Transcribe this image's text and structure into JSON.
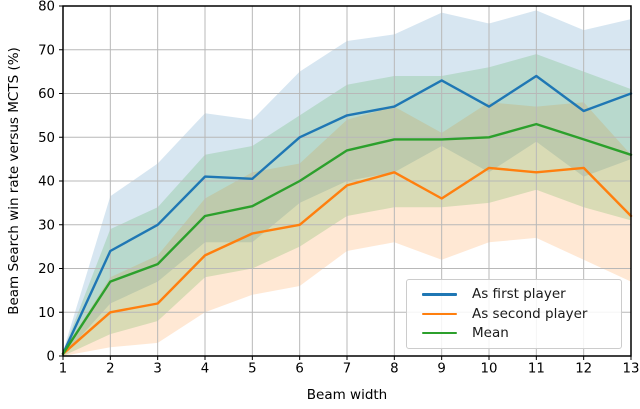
{
  "chart_data": {
    "type": "line",
    "title": "",
    "xlabel": "Beam width",
    "ylabel": "Beam Search win rate versus MCTS (%)",
    "x": [
      1,
      2,
      3,
      4,
      5,
      6,
      7,
      8,
      9,
      10,
      11,
      12,
      13
    ],
    "xlim": [
      1,
      13
    ],
    "ylim": [
      0,
      80
    ],
    "xticks": [
      1,
      2,
      3,
      4,
      5,
      6,
      7,
      8,
      9,
      10,
      11,
      12,
      13
    ],
    "yticks": [
      0,
      10,
      20,
      30,
      40,
      50,
      60,
      70,
      80
    ],
    "grid": true,
    "grid_color": "#b8b8b8",
    "band_opacity": 0.18,
    "legend_position": "lower right",
    "series": [
      {
        "name": "As first player",
        "color": "#1f77b4",
        "values": [
          0.5,
          24,
          30,
          41,
          40.5,
          50,
          55,
          57,
          63,
          57,
          64,
          56,
          60
        ],
        "band_low": [
          0,
          12,
          17,
          26,
          26,
          35,
          40,
          42,
          48,
          42,
          49,
          41,
          45
        ],
        "band_high": [
          1,
          36.5,
          44,
          55.5,
          54,
          65,
          72,
          73.5,
          78.5,
          76,
          79,
          74.5,
          77
        ]
      },
      {
        "name": "As second player",
        "color": "#ff7f0e",
        "values": [
          0.5,
          10,
          12,
          23,
          28,
          30,
          39,
          42,
          36,
          43,
          42,
          43,
          32
        ],
        "band_low": [
          0,
          2,
          3,
          10,
          14,
          16,
          24,
          26,
          22,
          26,
          27,
          22,
          17
        ],
        "band_high": [
          1,
          18,
          23,
          36,
          42,
          44,
          54,
          57,
          51,
          58,
          57,
          58,
          46
        ]
      },
      {
        "name": "Mean",
        "color": "#2ca02c",
        "values": [
          0.5,
          17,
          21,
          32,
          34.25,
          40,
          47,
          49.5,
          49.5,
          50,
          53,
          49.5,
          46
        ],
        "band_low": [
          0,
          5,
          8,
          18,
          20,
          25,
          32,
          34,
          34,
          35,
          38,
          34,
          31
        ],
        "band_high": [
          1,
          29,
          34,
          46,
          48,
          55,
          62,
          64,
          64,
          66,
          69,
          65,
          61
        ]
      }
    ]
  }
}
